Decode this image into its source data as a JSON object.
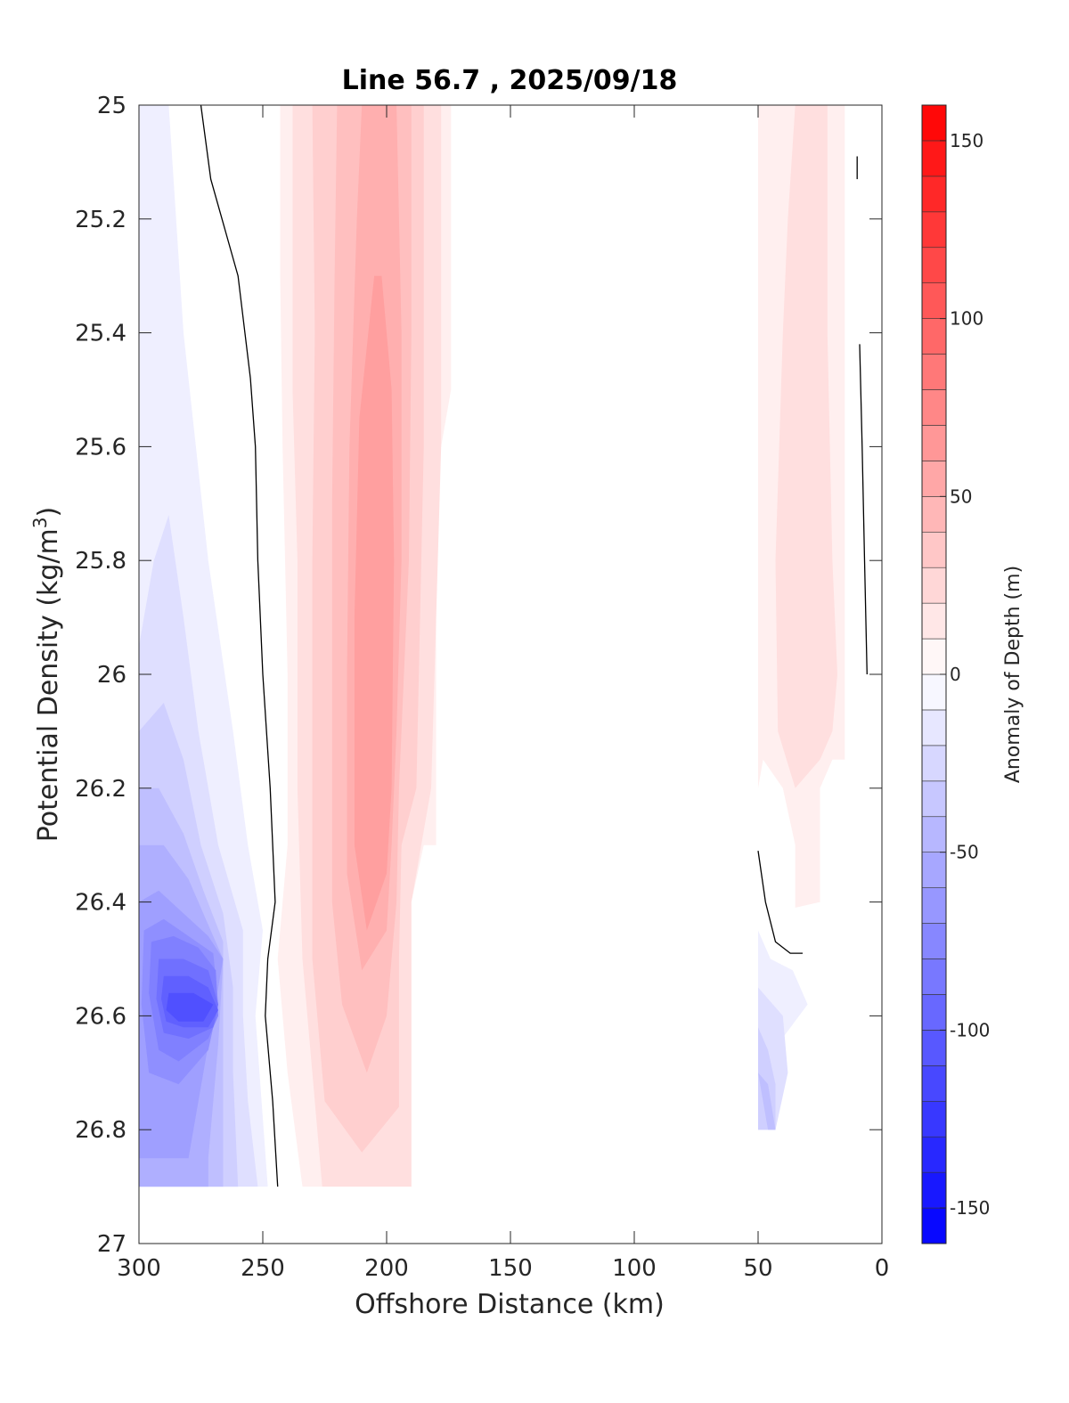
{
  "chart_data": {
    "type": "heatmap",
    "subtype": "filled-contour",
    "title": "Line 56.7 , 2025/09/18",
    "xlabel": "Offshore Distance (km)",
    "ylabel_main": "Potential Density (kg/m",
    "ylabel_sup": "3",
    "ylabel_end": ")",
    "xlim": [
      300,
      0
    ],
    "ylim": [
      27,
      25
    ],
    "x_reversed": true,
    "y_reversed": true,
    "xticks": [
      300,
      250,
      200,
      150,
      100,
      50,
      0
    ],
    "xtick_labels": [
      "300",
      "250",
      "200",
      "150",
      "100",
      "50",
      "0"
    ],
    "yticks": [
      25,
      25.2,
      25.4,
      25.6,
      25.8,
      26,
      26.2,
      26.4,
      26.6,
      26.8,
      27
    ],
    "ytick_labels": [
      "25",
      "25.2",
      "25.4",
      "25.6",
      "25.8",
      "26",
      "26.2",
      "26.4",
      "26.6",
      "26.8",
      "27"
    ],
    "colorbar": {
      "label": "Anomaly of Depth (m)",
      "range": [
        -160,
        160
      ],
      "step": 10,
      "ticks": [
        150,
        100,
        50,
        0,
        -50,
        -100,
        -150
      ],
      "tick_labels": [
        "150",
        "100",
        "50",
        "0",
        "-50",
        "-100",
        "-150"
      ]
    },
    "zero_contour_lines": [
      [
        [
          275,
          25
        ],
        [
          271,
          25.13
        ],
        [
          260,
          25.3
        ],
        [
          255,
          25.48
        ],
        [
          253,
          25.6
        ],
        [
          252,
          25.8
        ],
        [
          250,
          26
        ],
        [
          247,
          26.2
        ],
        [
          245,
          26.4
        ],
        [
          248,
          26.5
        ],
        [
          249,
          26.6
        ],
        [
          246,
          26.75
        ],
        [
          244,
          26.9
        ]
      ],
      [
        [
          10,
          25.09
        ],
        [
          10,
          25.13
        ]
      ],
      [
        [
          9,
          25.42
        ],
        [
          8,
          25.6
        ],
        [
          7,
          25.8
        ],
        [
          6,
          26
        ]
      ],
      [
        [
          50,
          26.31
        ],
        [
          47,
          26.4
        ],
        [
          43,
          26.47
        ],
        [
          37,
          26.49
        ],
        [
          32,
          26.49
        ]
      ]
    ],
    "regions": [
      {
        "level": -10,
        "polygon": [
          [
            300,
            25
          ],
          [
            288,
            25
          ],
          [
            282,
            25.4
          ],
          [
            272,
            25.8
          ],
          [
            262,
            26.1
          ],
          [
            256,
            26.3
          ],
          [
            250,
            26.45
          ],
          [
            253,
            26.6
          ],
          [
            250,
            26.78
          ],
          [
            248,
            26.9
          ],
          [
            300,
            26.9
          ]
        ]
      },
      {
        "level": -20,
        "polygon": [
          [
            300,
            25.95
          ],
          [
            294,
            25.8
          ],
          [
            288,
            25.72
          ],
          [
            282,
            25.9
          ],
          [
            276,
            26.1
          ],
          [
            268,
            26.3
          ],
          [
            258,
            26.45
          ],
          [
            258,
            26.6
          ],
          [
            256,
            26.75
          ],
          [
            252,
            26.9
          ],
          [
            300,
            26.9
          ]
        ]
      },
      {
        "level": -30,
        "polygon": [
          [
            300,
            26.1
          ],
          [
            290,
            26.05
          ],
          [
            282,
            26.15
          ],
          [
            275,
            26.3
          ],
          [
            266,
            26.42
          ],
          [
            262,
            26.55
          ],
          [
            262,
            26.7
          ],
          [
            260,
            26.9
          ],
          [
            300,
            26.9
          ]
        ]
      },
      {
        "level": -40,
        "polygon": [
          [
            300,
            26.2
          ],
          [
            292,
            26.2
          ],
          [
            282,
            26.28
          ],
          [
            274,
            26.38
          ],
          [
            266,
            26.47
          ],
          [
            266,
            26.62
          ],
          [
            266,
            26.8
          ],
          [
            266,
            26.9
          ],
          [
            300,
            26.9
          ]
        ]
      },
      {
        "level": -50,
        "polygon": [
          [
            300,
            26.3
          ],
          [
            290,
            26.3
          ],
          [
            280,
            26.36
          ],
          [
            272,
            26.44
          ],
          [
            266,
            26.5
          ],
          [
            268,
            26.65
          ],
          [
            272,
            26.85
          ],
          [
            272,
            26.9
          ],
          [
            300,
            26.9
          ]
        ]
      },
      {
        "level": -60,
        "polygon": [
          [
            300,
            26.4
          ],
          [
            292,
            26.38
          ],
          [
            282,
            26.42
          ],
          [
            272,
            26.46
          ],
          [
            266,
            26.5
          ],
          [
            270,
            26.6
          ],
          [
            276,
            26.75
          ],
          [
            280,
            26.85
          ],
          [
            300,
            26.85
          ]
        ]
      },
      {
        "level": -70,
        "polygon": [
          [
            298,
            26.45
          ],
          [
            290,
            26.43
          ],
          [
            280,
            26.46
          ],
          [
            270,
            26.49
          ],
          [
            268,
            26.58
          ],
          [
            272,
            26.66
          ],
          [
            284,
            26.72
          ],
          [
            296,
            26.7
          ],
          [
            299,
            26.58
          ]
        ]
      },
      {
        "level": -80,
        "polygon": [
          [
            295,
            26.47
          ],
          [
            286,
            26.46
          ],
          [
            276,
            26.48
          ],
          [
            269,
            26.52
          ],
          [
            268,
            26.6
          ],
          [
            272,
            26.64
          ],
          [
            284,
            26.68
          ],
          [
            292,
            26.66
          ],
          [
            296,
            26.56
          ]
        ]
      },
      {
        "level": -90,
        "polygon": [
          [
            292,
            26.5
          ],
          [
            282,
            26.5
          ],
          [
            272,
            26.52
          ],
          [
            268,
            26.58
          ],
          [
            270,
            26.62
          ],
          [
            280,
            26.64
          ],
          [
            290,
            26.63
          ],
          [
            293,
            26.57
          ]
        ]
      },
      {
        "level": -100,
        "polygon": [
          [
            290,
            26.53
          ],
          [
            280,
            26.53
          ],
          [
            272,
            26.55
          ],
          [
            268,
            26.59
          ],
          [
            272,
            26.62
          ],
          [
            282,
            26.62
          ],
          [
            289,
            26.61
          ],
          [
            291,
            26.57
          ]
        ]
      },
      {
        "level": -110,
        "polygon": [
          [
            288,
            26.56
          ],
          [
            278,
            26.56
          ],
          [
            270,
            26.58
          ],
          [
            274,
            26.61
          ],
          [
            284,
            26.61
          ],
          [
            289,
            26.59
          ]
        ]
      },
      {
        "level": 10,
        "polygon": [
          [
            243,
            25
          ],
          [
            174,
            25
          ],
          [
            174,
            25.5
          ],
          [
            180,
            25.65
          ],
          [
            180,
            26.3
          ],
          [
            185,
            26.3
          ],
          [
            190,
            26.4
          ],
          [
            190,
            26.9
          ],
          [
            234,
            26.9
          ],
          [
            240,
            26.7
          ],
          [
            244,
            26.5
          ],
          [
            240,
            26.3
          ],
          [
            240,
            26
          ],
          [
            242,
            25.6
          ],
          [
            243,
            25.3
          ]
        ]
      },
      {
        "level": 20,
        "polygon": [
          [
            238,
            25
          ],
          [
            178,
            25
          ],
          [
            178,
            25.6
          ],
          [
            182,
            26.2
          ],
          [
            186,
            26.3
          ],
          [
            190,
            26.4
          ],
          [
            190,
            26.9
          ],
          [
            226,
            26.9
          ],
          [
            230,
            26.7
          ],
          [
            234,
            26.5
          ],
          [
            236,
            26.2
          ],
          [
            236,
            25.8
          ],
          [
            238,
            25.5
          ]
        ]
      },
      {
        "level": 30,
        "polygon": [
          [
            230,
            25
          ],
          [
            185,
            25
          ],
          [
            185,
            25.6
          ],
          [
            188,
            26.2
          ],
          [
            194,
            26.3
          ],
          [
            195,
            26.5
          ],
          [
            195,
            26.6
          ],
          [
            195,
            26.76
          ],
          [
            210,
            26.84
          ],
          [
            225,
            26.75
          ],
          [
            230,
            26.5
          ],
          [
            230,
            26.2
          ],
          [
            230,
            25.8
          ],
          [
            229,
            25.4
          ]
        ]
      },
      {
        "level": 40,
        "polygon": [
          [
            220,
            25
          ],
          [
            190,
            25
          ],
          [
            190,
            25.4
          ],
          [
            191,
            25.8
          ],
          [
            195,
            26.2
          ],
          [
            196,
            26.4
          ],
          [
            200,
            26.6
          ],
          [
            208,
            26.7
          ],
          [
            218,
            26.58
          ],
          [
            222,
            26.4
          ],
          [
            222,
            26.1
          ],
          [
            222,
            25.7
          ],
          [
            221,
            25.3
          ]
        ]
      },
      {
        "level": 50,
        "polygon": [
          [
            210,
            25
          ],
          [
            196,
            25
          ],
          [
            194,
            25.4
          ],
          [
            194,
            25.8
          ],
          [
            196,
            26.1
          ],
          [
            198,
            26.3
          ],
          [
            200,
            26.45
          ],
          [
            210,
            26.52
          ],
          [
            216,
            26.35
          ],
          [
            216,
            26
          ],
          [
            215,
            25.6
          ],
          [
            212,
            25.2
          ]
        ]
      },
      {
        "level": 60,
        "polygon": [
          [
            202,
            25.3
          ],
          [
            198,
            25.5
          ],
          [
            197,
            25.8
          ],
          [
            198,
            26.2
          ],
          [
            200,
            26.35
          ],
          [
            208,
            26.45
          ],
          [
            213,
            26.3
          ],
          [
            213,
            25.9
          ],
          [
            211,
            25.55
          ],
          [
            205,
            25.3
          ]
        ]
      },
      {
        "level": 10,
        "polygon": [
          [
            50,
            25
          ],
          [
            15,
            25
          ],
          [
            15,
            26.15
          ],
          [
            20,
            26.15
          ],
          [
            25,
            26.2
          ],
          [
            25,
            26.4
          ],
          [
            35,
            26.41
          ],
          [
            35,
            26.3
          ],
          [
            40,
            26.2
          ],
          [
            48,
            26.15
          ],
          [
            50,
            26.2
          ]
        ]
      },
      {
        "level": 20,
        "polygon": [
          [
            35,
            25
          ],
          [
            22,
            25
          ],
          [
            22,
            25.4
          ],
          [
            20,
            25.8
          ],
          [
            18,
            26
          ],
          [
            20,
            26.1
          ],
          [
            25,
            26.15
          ],
          [
            35,
            26.2
          ],
          [
            42,
            26.1
          ],
          [
            43,
            25.8
          ],
          [
            40,
            25.4
          ],
          [
            38,
            25.2
          ]
        ]
      },
      {
        "level": -10,
        "polygon": [
          [
            50,
            26.45
          ],
          [
            50,
            26.8
          ],
          [
            43,
            26.8
          ],
          [
            42,
            26.65
          ],
          [
            30,
            26.58
          ],
          [
            36,
            26.52
          ],
          [
            45,
            26.5
          ]
        ]
      },
      {
        "level": -20,
        "polygon": [
          [
            50,
            26.55
          ],
          [
            50,
            26.8
          ],
          [
            43,
            26.8
          ],
          [
            38,
            26.7
          ],
          [
            40,
            26.6
          ]
        ]
      },
      {
        "level": -30,
        "polygon": [
          [
            50,
            26.62
          ],
          [
            50,
            26.8
          ],
          [
            43,
            26.8
          ],
          [
            43,
            26.72
          ],
          [
            46,
            26.66
          ]
        ]
      },
      {
        "level": -40,
        "polygon": [
          [
            50,
            26.7
          ],
          [
            46,
            26.8
          ],
          [
            43,
            26.8
          ],
          [
            46,
            26.72
          ]
        ]
      }
    ]
  }
}
